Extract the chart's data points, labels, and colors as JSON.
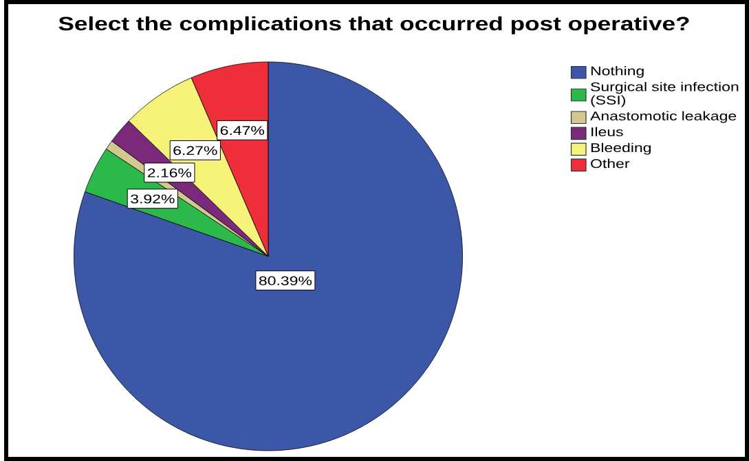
{
  "chart_data": {
    "type": "pie",
    "title": "Select the complications that occurred post operative?",
    "categories": [
      "Nothing",
      "Surgical site infection (SSI)",
      "Anastomotic leakage",
      "Ileus",
      "Bleeding",
      "Other"
    ],
    "values": [
      80.39,
      3.92,
      0.79,
      2.16,
      6.27,
      6.47
    ],
    "colors": [
      "#3c57a8",
      "#2db84b",
      "#d3c990",
      "#7b2a7b",
      "#f7f37a",
      "#ee2e38"
    ],
    "value_labels": [
      "80.39%",
      "3.92%",
      null,
      "2.16%",
      "6.27%",
      "6.47%"
    ],
    "legend": "top right"
  }
}
